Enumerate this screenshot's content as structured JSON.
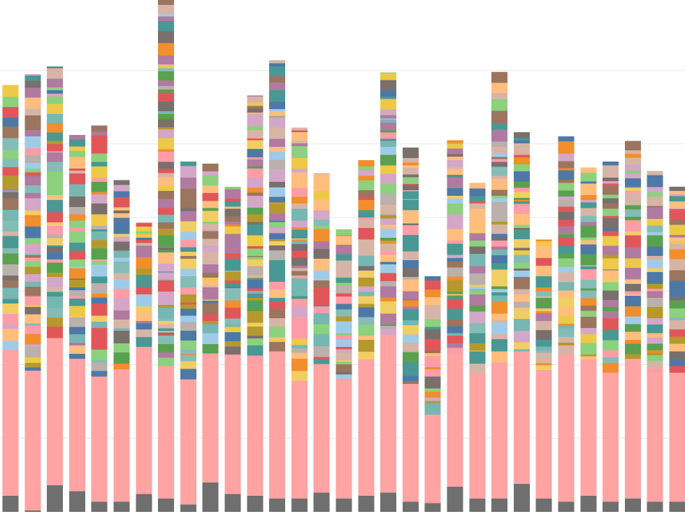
{
  "chart_data": {
    "type": "bar",
    "stacked": true,
    "title": "",
    "xlabel": "",
    "ylabel": "",
    "grid": true,
    "legend": "none",
    "ylim": [
      0,
      800
    ],
    "gridlines": [
      100,
      200,
      300,
      400,
      500,
      600,
      700,
      800
    ],
    "palette": [
      "#6f6f6f",
      "#ffa3a3",
      "#e15759",
      "#4e79a7",
      "#76b7b2",
      "#59a14f",
      "#edc948",
      "#b07aa1",
      "#ff9da7",
      "#9c755f",
      "#bab0ac",
      "#8cd17d",
      "#86bcb6",
      "#f1ce63",
      "#a0cbe8",
      "#ffbe7d",
      "#d4a6c8",
      "#499894",
      "#b6992d",
      "#d7b5a6",
      "#79706e",
      "#f28e2b"
    ],
    "tail_colors": [
      "#9c755f",
      "#d4a6c8",
      "#d7b5a6",
      "#e15759",
      "#4e79a7",
      "#8cd17d",
      "#f28e2b",
      "#499894",
      "#edc948",
      "#b07aa1",
      "#79706e",
      "#ffbe7d"
    ],
    "series": [
      {
        "base": 22,
        "main": 198,
        "top": 580
      },
      {
        "base": 2,
        "main": 190,
        "top": 595
      },
      {
        "base": 36,
        "main": 200,
        "top": 605
      },
      {
        "base": 28,
        "main": 180,
        "top": 512
      },
      {
        "base": 14,
        "main": 170,
        "top": 525
      },
      {
        "base": 14,
        "main": 180,
        "top": 451
      },
      {
        "base": 24,
        "main": 200,
        "top": 393
      },
      {
        "base": 18,
        "main": 180,
        "top": 760
      },
      {
        "base": 10,
        "main": 170,
        "top": 476
      },
      {
        "base": 40,
        "main": 175,
        "top": 473
      },
      {
        "base": 24,
        "main": 190,
        "top": 442
      },
      {
        "base": 22,
        "main": 180,
        "top": 566
      },
      {
        "base": 18,
        "main": 200,
        "top": 614
      },
      {
        "base": 18,
        "main": 160,
        "top": 522
      },
      {
        "base": 26,
        "main": 175,
        "top": 460
      },
      {
        "base": 18,
        "main": 160,
        "top": 384
      },
      {
        "base": 22,
        "main": 185,
        "top": 478
      },
      {
        "base": 26,
        "main": 215,
        "top": 597
      },
      {
        "base": 14,
        "main": 160,
        "top": 495
      },
      {
        "base": 12,
        "main": 120,
        "top": 320
      },
      {
        "base": 34,
        "main": 180,
        "top": 505
      },
      {
        "base": 18,
        "main": 170,
        "top": 447
      },
      {
        "base": 18,
        "main": 185,
        "top": 598
      },
      {
        "base": 38,
        "main": 180,
        "top": 516
      },
      {
        "base": 18,
        "main": 175,
        "top": 370
      },
      {
        "base": 14,
        "main": 200,
        "top": 510
      },
      {
        "base": 22,
        "main": 185,
        "top": 468
      },
      {
        "base": 14,
        "main": 175,
        "top": 476
      },
      {
        "base": 18,
        "main": 190,
        "top": 504
      },
      {
        "base": 14,
        "main": 175,
        "top": 463
      },
      {
        "base": 14,
        "main": 175,
        "top": 442
      }
    ]
  }
}
